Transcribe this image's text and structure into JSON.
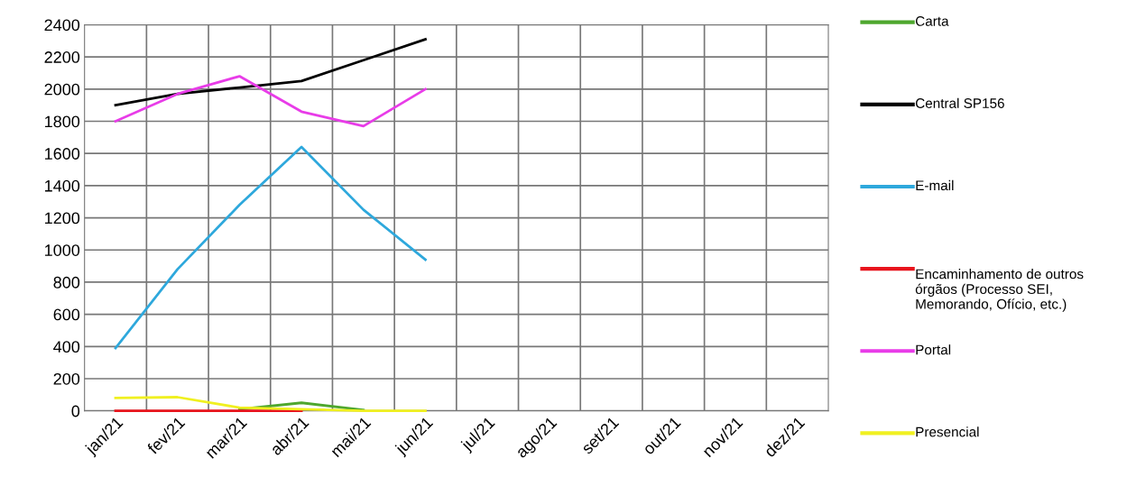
{
  "chart_data": {
    "type": "line",
    "categories": [
      "jan/21",
      "fev/21",
      "mar/21",
      "abr/21",
      "mai/21",
      "jun/21",
      "jul/21",
      "ago/21",
      "set/21",
      "out/21",
      "nov/21",
      "dez/21"
    ],
    "series": [
      {
        "name": "Carta",
        "color": "#4ea72e",
        "values": [
          null,
          null,
          10,
          50,
          5,
          null,
          null,
          null,
          null,
          null,
          null,
          null
        ]
      },
      {
        "name": "Central SP156",
        "color": "#000000",
        "values": [
          1900,
          1970,
          2010,
          2050,
          2180,
          2310,
          null,
          null,
          null,
          null,
          null,
          null
        ]
      },
      {
        "name": "E-mail",
        "color": "#2ea8dc",
        "values": [
          390,
          880,
          1280,
          1640,
          1250,
          940,
          null,
          null,
          null,
          null,
          null,
          null
        ]
      },
      {
        "name": "Encaminhamento de outros órgãos (Processo SEI, Memorando, Ofício, etc.)",
        "color": "#e8141c",
        "values": [
          0,
          0,
          0,
          0,
          null,
          null,
          null,
          null,
          null,
          null,
          null,
          null
        ]
      },
      {
        "name": "Portal",
        "color": "#e83ce8",
        "values": [
          1800,
          1970,
          2080,
          1860,
          1770,
          2000,
          null,
          null,
          null,
          null,
          null,
          null
        ]
      },
      {
        "name": "Presencial",
        "color": "#f0f020",
        "values": [
          80,
          85,
          20,
          10,
          0,
          0,
          null,
          null,
          null,
          null,
          null,
          null
        ]
      }
    ],
    "ylim": [
      0,
      2400
    ],
    "yticks": [
      0,
      200,
      400,
      600,
      800,
      1000,
      1200,
      1400,
      1600,
      1800,
      2000,
      2200,
      2400
    ],
    "grid": true,
    "legend": "right",
    "marker": "none",
    "line_style": "solid"
  }
}
